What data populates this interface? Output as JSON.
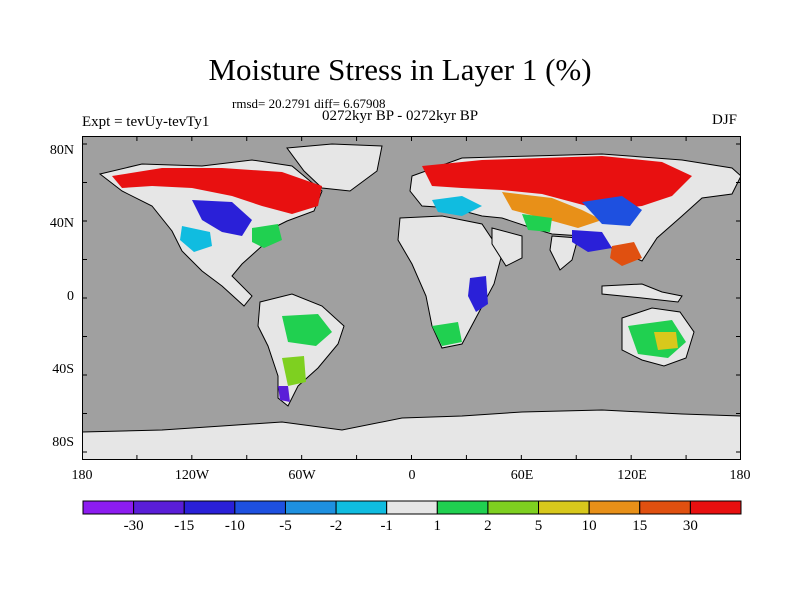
{
  "title": "Moisture Stress in Layer 1 (%)",
  "stats": "rmsd= 20.2791 diff= 6.67908",
  "period": "0272kyr BP - 0272kyr BP",
  "experiment": "Expt = tevUy-tevTy1",
  "season": "DJF",
  "lat_labels": [
    "80N",
    "40N",
    "0",
    "40S",
    "80S"
  ],
  "lon_labels": [
    "180",
    "120W",
    "60W",
    "0",
    "60E",
    "120E",
    "180"
  ],
  "colorbar": {
    "labels": [
      "-30",
      "-15",
      "-10",
      "-5",
      "-2",
      "-1",
      "1",
      "2",
      "5",
      "10",
      "15",
      "30"
    ],
    "colors": [
      "#8c1cf0",
      "#5a1ed8",
      "#2a20d8",
      "#1e50e0",
      "#1e90e0",
      "#10bce0",
      "#e6e6e6",
      "#20d050",
      "#7ed020",
      "#d8c81c",
      "#e89018",
      "#e05010",
      "#e81010"
    ]
  },
  "map_colors": {
    "ocean": "#a0a0a0",
    "land": "#e6e6e6",
    "antarctica": "#e6e6e6"
  }
}
